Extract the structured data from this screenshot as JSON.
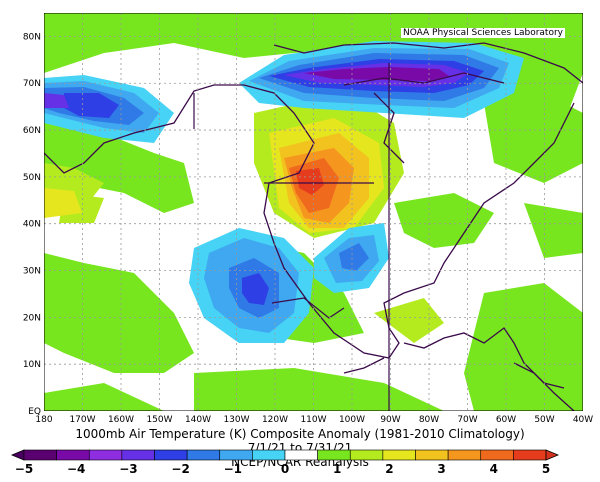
{
  "credit": "NOAA Physical Sciences Laboratory",
  "title": "1000mb Air Temperature (K) Composite Anomaly (1981-2010 Climatology)",
  "date_range": "7/1/21 to 7/31/21",
  "source": "NCEP/NCAR Reanalysis",
  "lat_labels": [
    "80N",
    "70N",
    "60N",
    "50N",
    "40N",
    "30N",
    "20N",
    "10N",
    "EQ"
  ],
  "lon_labels": [
    "180",
    "170W",
    "160W",
    "150W",
    "140W",
    "130W",
    "120W",
    "110W",
    "100W",
    "90W",
    "80W",
    "70W",
    "60W",
    "50W",
    "40W"
  ],
  "colorbar_labels": [
    "−5",
    "−4",
    "−3",
    "−2",
    "−1",
    "0",
    "1",
    "2",
    "3",
    "4",
    "5"
  ],
  "colors": {
    "neg": [
      "#5a0070",
      "#7a0aa8",
      "#8f2de0",
      "#6530e6",
      "#2f3fe6",
      "#2f7ae6",
      "#3fa8f0",
      "#46d3f5"
    ],
    "pos": [
      "#78e61e",
      "#b4eb1e",
      "#e6e61e",
      "#f2c31e",
      "#f5961e",
      "#f06a1e",
      "#e63c1e"
    ]
  },
  "chart_data": {
    "type": "heatmap",
    "title": "1000mb Air Temperature (K) Composite Anomaly (1981-2010 Climatology)",
    "units": "K",
    "lon_range": [
      -180,
      -40
    ],
    "lat_range": [
      0,
      85
    ],
    "color_levels": [
      -5,
      -4.5,
      -4,
      -3.5,
      -3,
      -2.5,
      -2,
      -1.5,
      -1,
      -0.5,
      0.5,
      1,
      1.5,
      2,
      2.5,
      3,
      3.5,
      4,
      4.5,
      5
    ],
    "features": [
      {
        "name": "Pacific Northwest warm anomaly",
        "lon": -113,
        "lat": 50,
        "value": 4.5
      },
      {
        "name": "Canadian Arctic cold anomaly",
        "lon": -100,
        "lat": 69,
        "value": -4.5
      },
      {
        "name": "Bering Sea cold anomaly",
        "lon": -165,
        "lat": 65,
        "value": -3
      },
      {
        "name": "Eastern Pacific cold anomaly",
        "lon": -121,
        "lat": 25,
        "value": -2.5
      },
      {
        "name": "Southern Plains cold anomaly",
        "lon": -104,
        "lat": 35,
        "value": -2
      }
    ]
  }
}
